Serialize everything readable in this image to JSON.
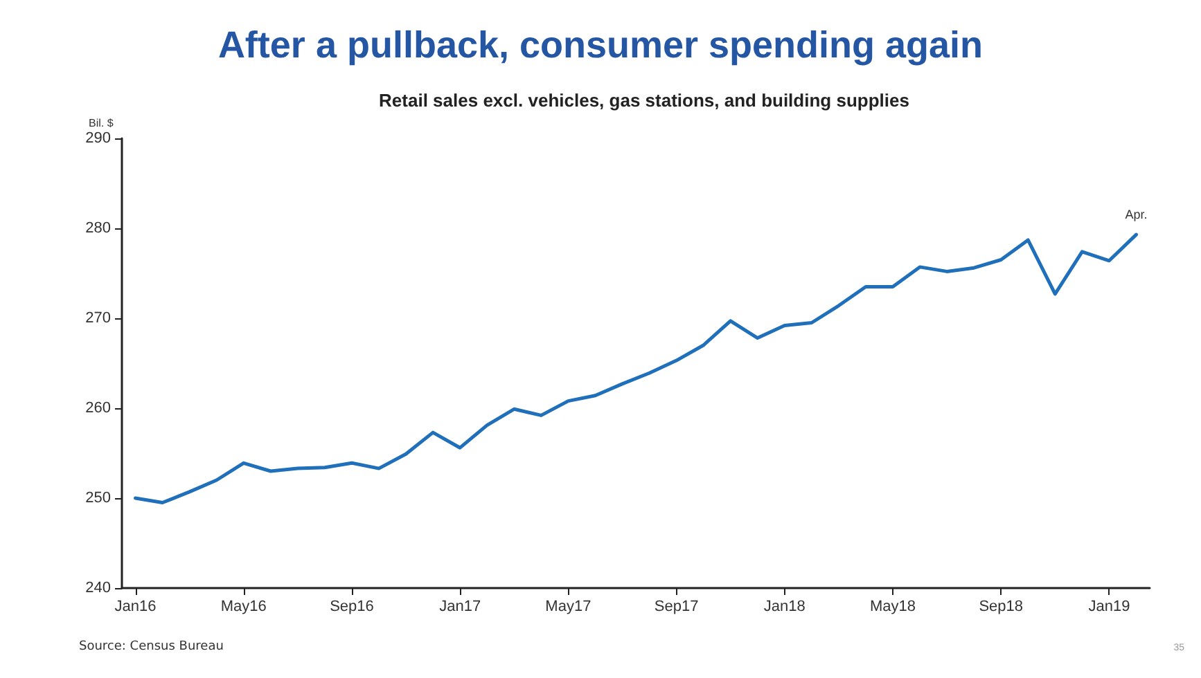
{
  "chart_data": {
    "type": "line",
    "title": "After a pullback, consumer spending again",
    "subtitle": "Retail sales excl. vehicles, gas stations, and building supplies",
    "ylabel": "Bil. $",
    "categories": [
      "Jan16",
      null,
      null,
      null,
      "May16",
      null,
      null,
      null,
      "Sep16",
      null,
      null,
      null,
      "Jan17",
      null,
      null,
      null,
      "May17",
      null,
      null,
      null,
      "Sep17",
      null,
      null,
      null,
      "Jan18",
      null,
      null,
      null,
      "May18",
      null,
      null,
      null,
      "Sep18",
      null,
      null,
      null,
      "Jan19",
      null
    ],
    "series": [
      {
        "color": "#1f6fba",
        "values": [
          250.0,
          249.5,
          250.7,
          252.0,
          253.9,
          253.0,
          253.3,
          253.4,
          253.9,
          253.3,
          254.9,
          257.3,
          255.6,
          258.1,
          259.9,
          259.2,
          260.8,
          261.4,
          262.7,
          263.9,
          265.3,
          267.0,
          269.7,
          267.8,
          269.2,
          269.5,
          271.4,
          273.5,
          273.5,
          275.7,
          275.2,
          275.6,
          276.5,
          278.7,
          272.7,
          277.4,
          276.4,
          279.3
        ]
      }
    ],
    "ylim": [
      240,
      290
    ],
    "yticks": [
      240,
      250,
      260,
      270,
      280,
      290
    ],
    "grid": false,
    "marker": "none",
    "line_style": "solid",
    "annotations": [
      "Source: Census Bureau",
      "35",
      {
        "text": "Apr.",
        "y": 279.3
      }
    ]
  }
}
